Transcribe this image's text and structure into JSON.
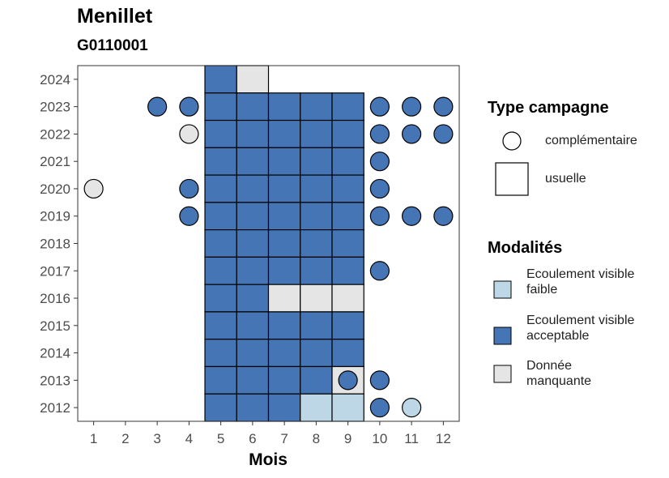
{
  "chart_data": {
    "type": "heatmap",
    "title": "Menillet",
    "subtitle": "G0110001",
    "xlabel": "Mois",
    "ylabel": "",
    "x_ticks": [
      1,
      2,
      3,
      4,
      5,
      6,
      7,
      8,
      9,
      10,
      11,
      12
    ],
    "y_ticks": [
      2012,
      2013,
      2014,
      2015,
      2016,
      2017,
      2018,
      2019,
      2020,
      2021,
      2022,
      2023,
      2024
    ],
    "xlim": [
      0.5,
      12.5
    ],
    "ylim": [
      2011.5,
      2024.5
    ],
    "colors": {
      "Ecoulement visible faible": "#bdd7e7",
      "Ecoulement visible acceptable": "#4575b4",
      "Donnée manquante": "#e5e5e5"
    },
    "legend_shape": {
      "title": "Type campagne",
      "items": [
        "complémentaire",
        "usuelle"
      ]
    },
    "legend_color": {
      "title": "Modalités",
      "items": [
        "Ecoulement visible faible",
        "Ecoulement visible acceptable",
        "Donnée manquante"
      ]
    },
    "points": [
      {
        "year": 2024,
        "month": 5,
        "type": "usuelle",
        "modalite": "Ecoulement visible acceptable"
      },
      {
        "year": 2024,
        "month": 6,
        "type": "usuelle",
        "modalite": "Donnée manquante"
      },
      {
        "year": 2023,
        "month": 3,
        "type": "complémentaire",
        "modalite": "Ecoulement visible acceptable"
      },
      {
        "year": 2023,
        "month": 4,
        "type": "complémentaire",
        "modalite": "Ecoulement visible acceptable"
      },
      {
        "year": 2023,
        "month": 5,
        "type": "usuelle",
        "modalite": "Ecoulement visible acceptable"
      },
      {
        "year": 2023,
        "month": 6,
        "type": "usuelle",
        "modalite": "Ecoulement visible acceptable"
      },
      {
        "year": 2023,
        "month": 7,
        "type": "usuelle",
        "modalite": "Ecoulement visible acceptable"
      },
      {
        "year": 2023,
        "month": 8,
        "type": "usuelle",
        "modalite": "Ecoulement visible acceptable"
      },
      {
        "year": 2023,
        "month": 9,
        "type": "usuelle",
        "modalite": "Ecoulement visible acceptable"
      },
      {
        "year": 2023,
        "month": 10,
        "type": "complémentaire",
        "modalite": "Ecoulement visible acceptable"
      },
      {
        "year": 2023,
        "month": 11,
        "type": "complémentaire",
        "modalite": "Ecoulement visible acceptable"
      },
      {
        "year": 2023,
        "month": 12,
        "type": "complémentaire",
        "modalite": "Ecoulement visible acceptable"
      },
      {
        "year": 2022,
        "month": 4,
        "type": "complémentaire",
        "modalite": "Donnée manquante"
      },
      {
        "year": 2022,
        "month": 5,
        "type": "usuelle",
        "modalite": "Ecoulement visible acceptable"
      },
      {
        "year": 2022,
        "month": 6,
        "type": "usuelle",
        "modalite": "Ecoulement visible acceptable"
      },
      {
        "year": 2022,
        "month": 7,
        "type": "usuelle",
        "modalite": "Ecoulement visible acceptable"
      },
      {
        "year": 2022,
        "month": 8,
        "type": "usuelle",
        "modalite": "Ecoulement visible acceptable"
      },
      {
        "year": 2022,
        "month": 9,
        "type": "usuelle",
        "modalite": "Ecoulement visible acceptable"
      },
      {
        "year": 2022,
        "month": 10,
        "type": "complémentaire",
        "modalite": "Ecoulement visible acceptable"
      },
      {
        "year": 2022,
        "month": 11,
        "type": "complémentaire",
        "modalite": "Ecoulement visible acceptable"
      },
      {
        "year": 2022,
        "month": 12,
        "type": "complémentaire",
        "modalite": "Ecoulement visible acceptable"
      },
      {
        "year": 2021,
        "month": 5,
        "type": "usuelle",
        "modalite": "Ecoulement visible acceptable"
      },
      {
        "year": 2021,
        "month": 6,
        "type": "usuelle",
        "modalite": "Ecoulement visible acceptable"
      },
      {
        "year": 2021,
        "month": 7,
        "type": "usuelle",
        "modalite": "Ecoulement visible acceptable"
      },
      {
        "year": 2021,
        "month": 8,
        "type": "usuelle",
        "modalite": "Ecoulement visible acceptable"
      },
      {
        "year": 2021,
        "month": 9,
        "type": "usuelle",
        "modalite": "Ecoulement visible acceptable"
      },
      {
        "year": 2021,
        "month": 10,
        "type": "complémentaire",
        "modalite": "Ecoulement visible acceptable"
      },
      {
        "year": 2020,
        "month": 1,
        "type": "complémentaire",
        "modalite": "Donnée manquante"
      },
      {
        "year": 2020,
        "month": 4,
        "type": "complémentaire",
        "modalite": "Ecoulement visible acceptable"
      },
      {
        "year": 2020,
        "month": 5,
        "type": "usuelle",
        "modalite": "Ecoulement visible acceptable"
      },
      {
        "year": 2020,
        "month": 6,
        "type": "usuelle",
        "modalite": "Ecoulement visible acceptable"
      },
      {
        "year": 2020,
        "month": 7,
        "type": "usuelle",
        "modalite": "Ecoulement visible acceptable"
      },
      {
        "year": 2020,
        "month": 8,
        "type": "usuelle",
        "modalite": "Ecoulement visible acceptable"
      },
      {
        "year": 2020,
        "month": 9,
        "type": "usuelle",
        "modalite": "Ecoulement visible acceptable"
      },
      {
        "year": 2020,
        "month": 10,
        "type": "complémentaire",
        "modalite": "Ecoulement visible acceptable"
      },
      {
        "year": 2019,
        "month": 4,
        "type": "complémentaire",
        "modalite": "Ecoulement visible acceptable"
      },
      {
        "year": 2019,
        "month": 5,
        "type": "usuelle",
        "modalite": "Ecoulement visible acceptable"
      },
      {
        "year": 2019,
        "month": 6,
        "type": "usuelle",
        "modalite": "Ecoulement visible acceptable"
      },
      {
        "year": 2019,
        "month": 7,
        "type": "usuelle",
        "modalite": "Ecoulement visible acceptable"
      },
      {
        "year": 2019,
        "month": 8,
        "type": "usuelle",
        "modalite": "Ecoulement visible acceptable"
      },
      {
        "year": 2019,
        "month": 9,
        "type": "usuelle",
        "modalite": "Ecoulement visible acceptable"
      },
      {
        "year": 2019,
        "month": 10,
        "type": "complémentaire",
        "modalite": "Ecoulement visible acceptable"
      },
      {
        "year": 2019,
        "month": 11,
        "type": "complémentaire",
        "modalite": "Ecoulement visible acceptable"
      },
      {
        "year": 2019,
        "month": 12,
        "type": "complémentaire",
        "modalite": "Ecoulement visible acceptable"
      },
      {
        "year": 2018,
        "month": 5,
        "type": "usuelle",
        "modalite": "Ecoulement visible acceptable"
      },
      {
        "year": 2018,
        "month": 6,
        "type": "usuelle",
        "modalite": "Ecoulement visible acceptable"
      },
      {
        "year": 2018,
        "month": 7,
        "type": "usuelle",
        "modalite": "Ecoulement visible acceptable"
      },
      {
        "year": 2018,
        "month": 8,
        "type": "usuelle",
        "modalite": "Ecoulement visible acceptable"
      },
      {
        "year": 2018,
        "month": 9,
        "type": "usuelle",
        "modalite": "Ecoulement visible acceptable"
      },
      {
        "year": 2017,
        "month": 5,
        "type": "usuelle",
        "modalite": "Ecoulement visible acceptable"
      },
      {
        "year": 2017,
        "month": 6,
        "type": "usuelle",
        "modalite": "Ecoulement visible acceptable"
      },
      {
        "year": 2017,
        "month": 7,
        "type": "usuelle",
        "modalite": "Ecoulement visible acceptable"
      },
      {
        "year": 2017,
        "month": 8,
        "type": "usuelle",
        "modalite": "Ecoulement visible acceptable"
      },
      {
        "year": 2017,
        "month": 9,
        "type": "usuelle",
        "modalite": "Ecoulement visible acceptable"
      },
      {
        "year": 2017,
        "month": 10,
        "type": "complémentaire",
        "modalite": "Ecoulement visible acceptable"
      },
      {
        "year": 2016,
        "month": 5,
        "type": "usuelle",
        "modalite": "Ecoulement visible acceptable"
      },
      {
        "year": 2016,
        "month": 6,
        "type": "usuelle",
        "modalite": "Ecoulement visible acceptable"
      },
      {
        "year": 2016,
        "month": 7,
        "type": "usuelle",
        "modalite": "Donnée manquante"
      },
      {
        "year": 2016,
        "month": 8,
        "type": "usuelle",
        "modalite": "Donnée manquante"
      },
      {
        "year": 2016,
        "month": 9,
        "type": "usuelle",
        "modalite": "Donnée manquante"
      },
      {
        "year": 2015,
        "month": 5,
        "type": "usuelle",
        "modalite": "Ecoulement visible acceptable"
      },
      {
        "year": 2015,
        "month": 6,
        "type": "usuelle",
        "modalite": "Ecoulement visible acceptable"
      },
      {
        "year": 2015,
        "month": 7,
        "type": "usuelle",
        "modalite": "Ecoulement visible acceptable"
      },
      {
        "year": 2015,
        "month": 8,
        "type": "usuelle",
        "modalite": "Ecoulement visible acceptable"
      },
      {
        "year": 2015,
        "month": 9,
        "type": "usuelle",
        "modalite": "Ecoulement visible acceptable"
      },
      {
        "year": 2014,
        "month": 5,
        "type": "usuelle",
        "modalite": "Ecoulement visible acceptable"
      },
      {
        "year": 2014,
        "month": 6,
        "type": "usuelle",
        "modalite": "Ecoulement visible acceptable"
      },
      {
        "year": 2014,
        "month": 7,
        "type": "usuelle",
        "modalite": "Ecoulement visible acceptable"
      },
      {
        "year": 2014,
        "month": 8,
        "type": "usuelle",
        "modalite": "Ecoulement visible acceptable"
      },
      {
        "year": 2014,
        "month": 9,
        "type": "usuelle",
        "modalite": "Ecoulement visible acceptable"
      },
      {
        "year": 2013,
        "month": 5,
        "type": "usuelle",
        "modalite": "Ecoulement visible acceptable"
      },
      {
        "year": 2013,
        "month": 6,
        "type": "usuelle",
        "modalite": "Ecoulement visible acceptable"
      },
      {
        "year": 2013,
        "month": 7,
        "type": "usuelle",
        "modalite": "Ecoulement visible acceptable"
      },
      {
        "year": 2013,
        "month": 8,
        "type": "usuelle",
        "modalite": "Ecoulement visible acceptable"
      },
      {
        "year": 2013,
        "month": 9,
        "type": "usuelle",
        "modalite": "Donnée manquante"
      },
      {
        "year": 2013,
        "month": 9,
        "type": "complémentaire",
        "modalite": "Ecoulement visible acceptable"
      },
      {
        "year": 2013,
        "month": 10,
        "type": "complémentaire",
        "modalite": "Ecoulement visible acceptable"
      },
      {
        "year": 2012,
        "month": 5,
        "type": "usuelle",
        "modalite": "Ecoulement visible acceptable"
      },
      {
        "year": 2012,
        "month": 6,
        "type": "usuelle",
        "modalite": "Ecoulement visible acceptable"
      },
      {
        "year": 2012,
        "month": 7,
        "type": "usuelle",
        "modalite": "Ecoulement visible acceptable"
      },
      {
        "year": 2012,
        "month": 8,
        "type": "usuelle",
        "modalite": "Ecoulement visible faible"
      },
      {
        "year": 2012,
        "month": 9,
        "type": "usuelle",
        "modalite": "Ecoulement visible faible"
      },
      {
        "year": 2012,
        "month": 10,
        "type": "complémentaire",
        "modalite": "Ecoulement visible acceptable"
      },
      {
        "year": 2012,
        "month": 11,
        "type": "complémentaire",
        "modalite": "Ecoulement visible faible"
      }
    ]
  }
}
